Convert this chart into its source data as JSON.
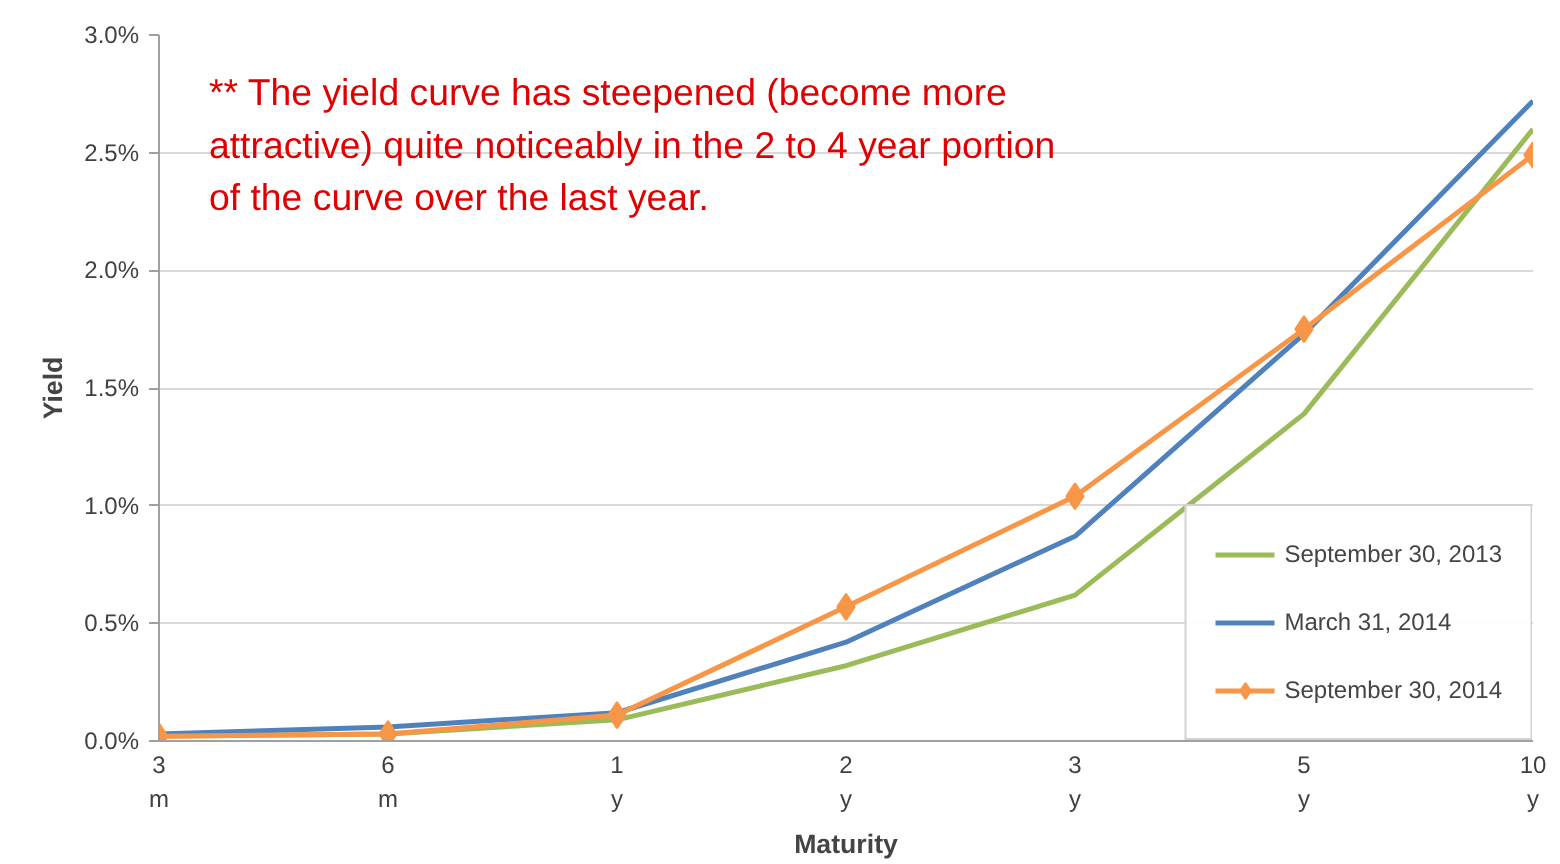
{
  "chart_data": {
    "type": "line",
    "xlabel": "Maturity",
    "ylabel": "Yield",
    "categories": [
      "3\nm",
      "6\nm",
      "1\ny",
      "2\ny",
      "3\ny",
      "5\ny",
      "10\ny"
    ],
    "series": [
      {
        "name": "September 30, 2013",
        "color": "#9bbb59",
        "values": [
          0.02,
          0.03,
          0.09,
          0.32,
          0.62,
          1.39,
          2.6
        ]
      },
      {
        "name": "March 31, 2014",
        "color": "#4f81bd",
        "values": [
          0.03,
          0.06,
          0.12,
          0.42,
          0.87,
          1.73,
          2.72
        ]
      },
      {
        "name": "September 30, 2014",
        "color": "#f79646",
        "marker": "diamond",
        "values": [
          0.02,
          0.03,
          0.11,
          0.57,
          1.04,
          1.75,
          2.49
        ]
      }
    ],
    "ylim": [
      0,
      3
    ],
    "yticks": [
      {
        "value": 0,
        "label": "0.0%"
      },
      {
        "value": 0.5,
        "label": "0.5%"
      },
      {
        "value": 1,
        "label": "1.0%"
      },
      {
        "value": 1.5,
        "label": "1.5%"
      },
      {
        "value": 2,
        "label": "2.0%"
      },
      {
        "value": 2.5,
        "label": "2.5%"
      },
      {
        "value": 3,
        "label": "3.0%"
      }
    ],
    "grid": "y",
    "legend": "bottom right",
    "line_style": "solid",
    "annotations": [
      "** The yield curve has steepened (become more attractive) quite noticeably in the 2 to 4 year portion of the curve over the last year."
    ]
  }
}
